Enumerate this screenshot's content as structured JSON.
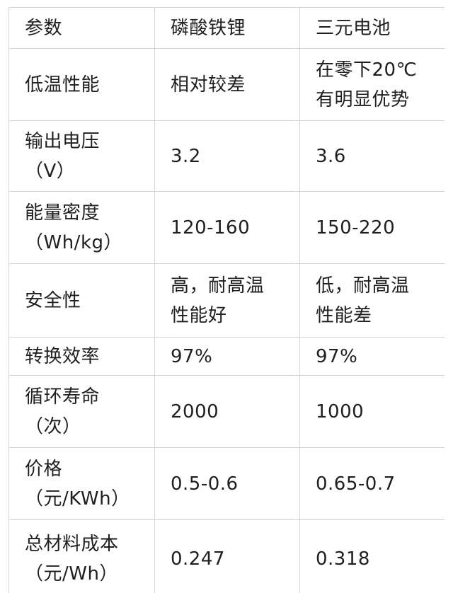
{
  "table": {
    "header": [
      "参数",
      "磷酸铁锂",
      "三元电池"
    ],
    "rows": [
      [
        "低温性能",
        "相对较差",
        "在零下20℃\n有明显优势"
      ],
      [
        "输出电压\n（V）",
        "3.2",
        "3.6"
      ],
      [
        "能量密度\n（Wh/kg）",
        "120-160",
        "150-220"
      ],
      [
        "安全性",
        "高，耐高温\n性能好",
        "低，耐高温\n性能差"
      ],
      [
        "转换效率",
        "97%",
        "97%"
      ],
      [
        "循环寿命\n（次）",
        "2000",
        "1000"
      ],
      [
        "价格\n（元/KWh）",
        "0.5-0.6",
        "0.65-0.7"
      ],
      [
        "总材料成本\n（元/Wh）",
        "0.247",
        "0.318"
      ]
    ]
  },
  "colors": {
    "border": "#d4d4d4",
    "text": "#1f1f1f",
    "background": "#ffffff"
  }
}
